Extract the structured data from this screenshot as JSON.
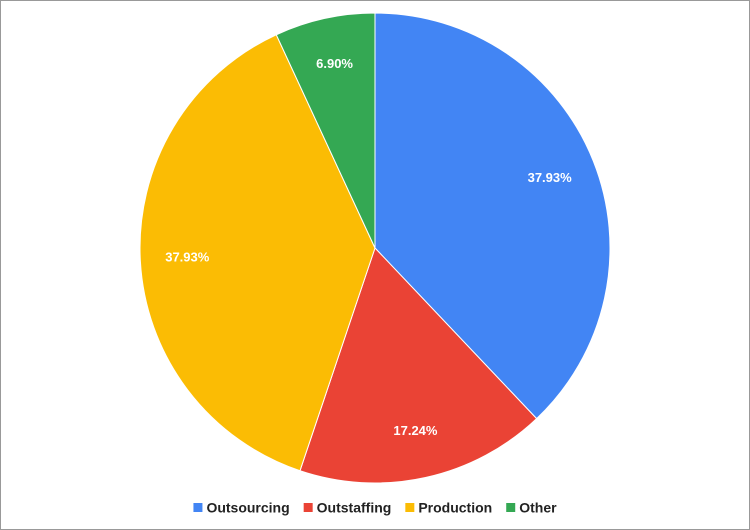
{
  "chart_data": {
    "type": "pie",
    "categories": [
      "Outsourcing",
      "Outstaffing",
      "Production",
      "Other"
    ],
    "values": [
      37.93,
      17.24,
      37.93,
      6.9
    ],
    "value_labels": [
      "37.93%",
      "17.24%",
      "37.93%",
      "6.90%"
    ],
    "colors": [
      "#4285f4",
      "#ea4335",
      "#fbbc04",
      "#34a853"
    ],
    "legend": "bottom"
  }
}
